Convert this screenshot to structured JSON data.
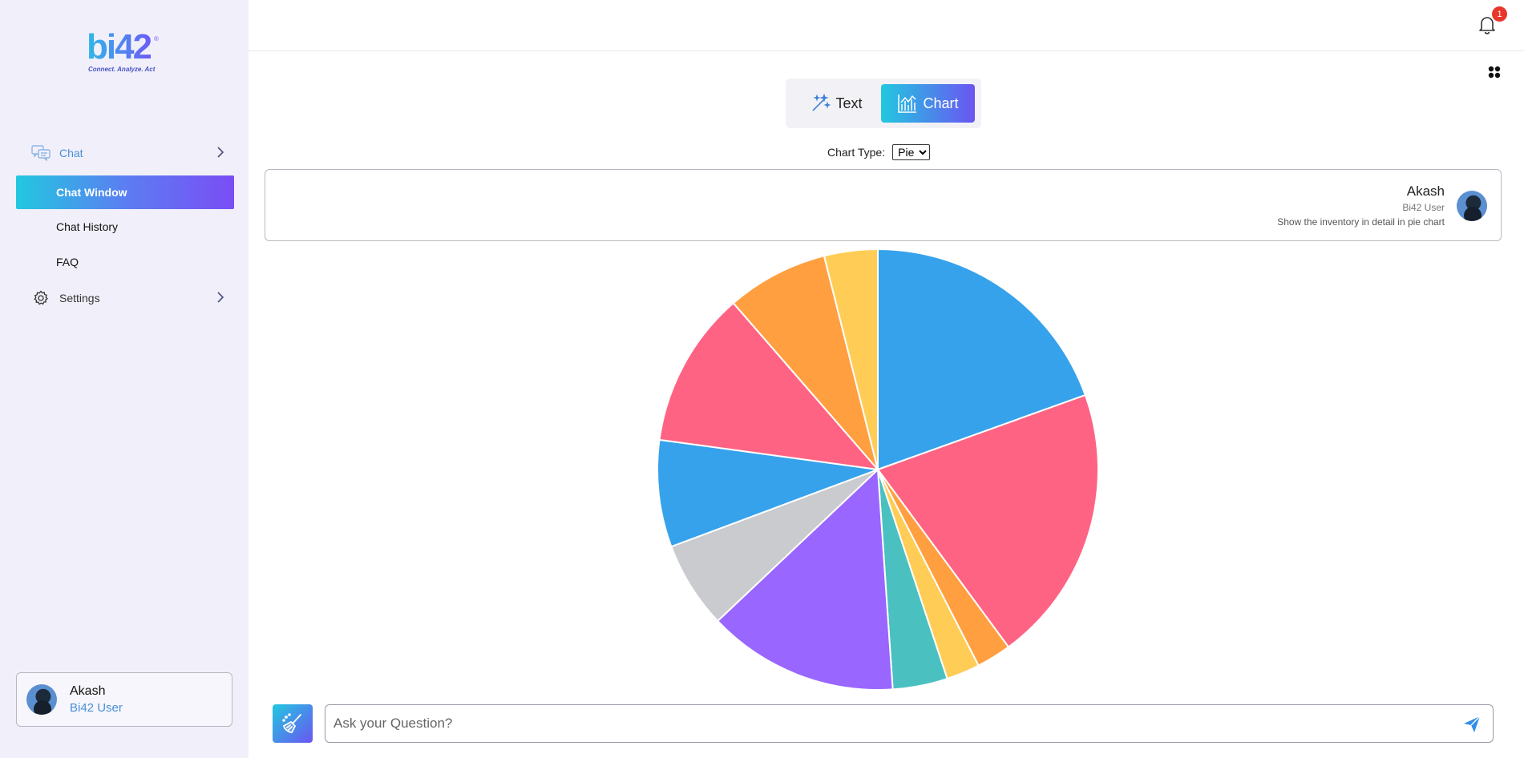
{
  "brand": {
    "logo_text": "bi42",
    "registered": "®",
    "tagline": "Connect. Analyze. Act"
  },
  "sidebar": {
    "chat_group": {
      "label": "Chat",
      "icon": "chat-bubbles-icon"
    },
    "items": [
      {
        "label": "Chat Window",
        "active": true
      },
      {
        "label": "Chat History",
        "active": false
      },
      {
        "label": "FAQ",
        "active": false
      }
    ],
    "settings_group": {
      "label": "Settings",
      "icon": "gear-icon"
    },
    "user": {
      "name": "Akash",
      "role": "Bi42 User"
    }
  },
  "header": {
    "notification_count": "1"
  },
  "view_toggle": {
    "text_label": "Text",
    "chart_label": "Chart",
    "selected": "Chart"
  },
  "chart_type": {
    "label": "Chart Type:",
    "selected": "Pie"
  },
  "message": {
    "user_name": "Akash",
    "user_role": "Bi42 User",
    "text": "Show the inventory in detail in pie chart"
  },
  "chart_data": {
    "type": "pie",
    "start_angle_deg": -90,
    "values": [
      19.9,
      20.8,
      2.6,
      2.5,
      4.1,
      14.3,
      6.5,
      8.0,
      11.7,
      7.6,
      4.0
    ],
    "colors": [
      "#36a2eb",
      "#ff6384",
      "#ff9f40",
      "#ffcd56",
      "#4bc0c0",
      "#9966ff",
      "#c9cbcf",
      "#36a2eb",
      "#ff6384",
      "#ff9f40",
      "#ffcd56"
    ]
  },
  "input": {
    "placeholder": "Ask your Question?",
    "value": ""
  },
  "icons": {
    "clear": "broom-icon",
    "send": "send-icon",
    "notifications": "bell-icon",
    "apps": "grid-icon"
  }
}
